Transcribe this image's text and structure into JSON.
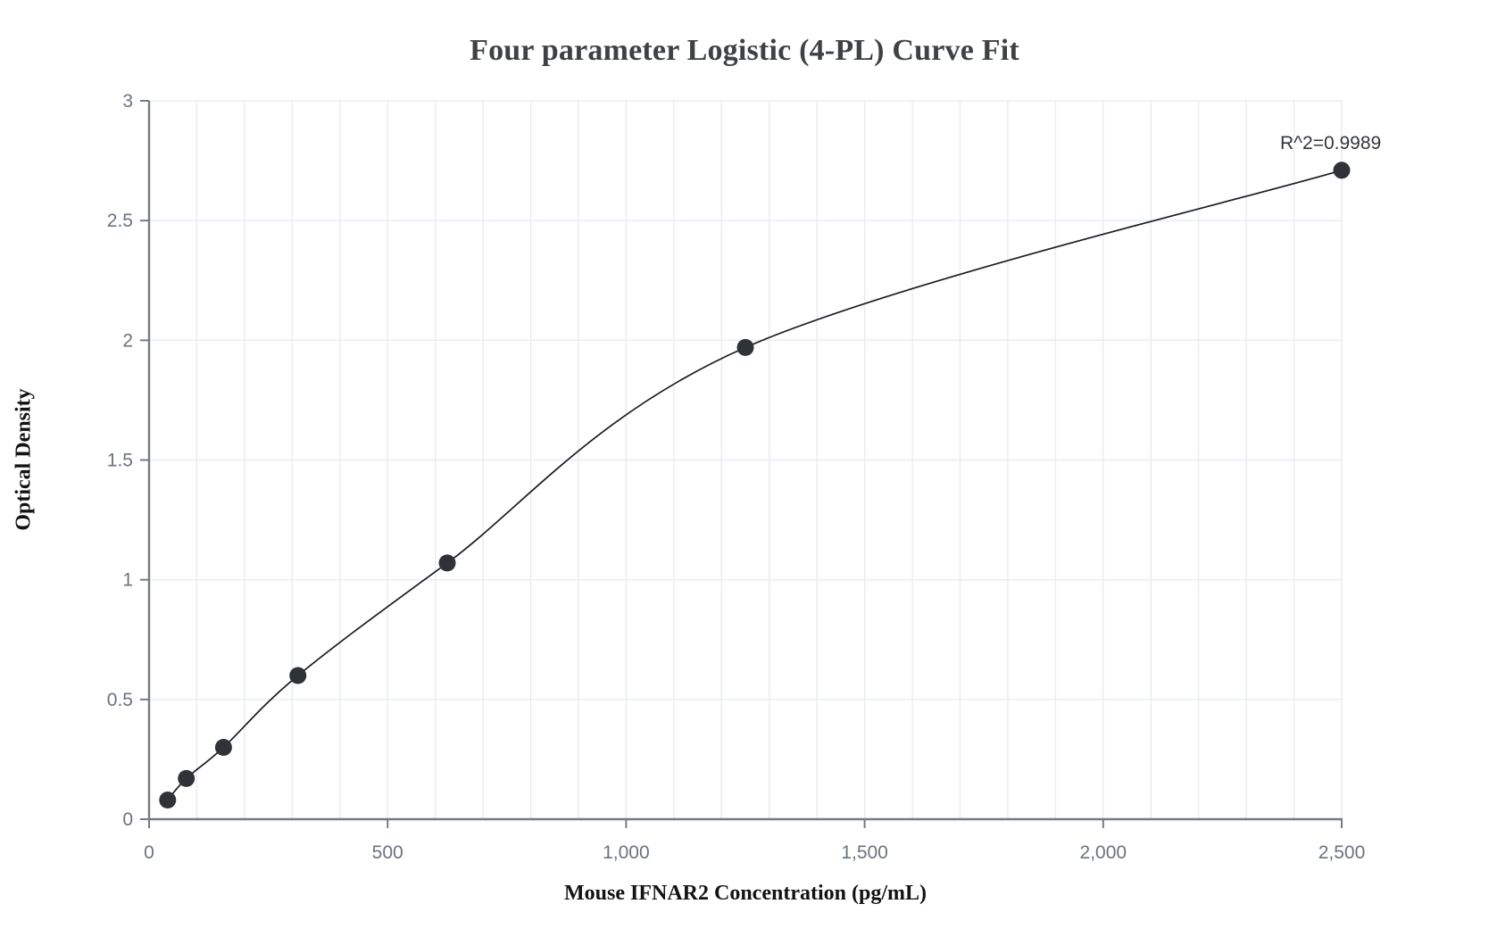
{
  "chart_data": {
    "type": "scatter",
    "title": "Four parameter Logistic (4-PL) Curve Fit",
    "xlabel": "Mouse IFNAR2 Concentration (pg/mL)",
    "ylabel": "Optical Density",
    "annotation": "R^2=0.9989",
    "series": [
      {
        "name": "4-PL standard curve",
        "x": [
          39,
          78,
          156,
          312,
          625,
          1250,
          2500
        ],
        "y": [
          0.08,
          0.17,
          0.3,
          0.6,
          1.07,
          1.97,
          2.71
        ],
        "marker": "filled-circle",
        "fit_line": "smooth 4-PL curve through all points"
      }
    ],
    "xlim": [
      0,
      2500
    ],
    "ylim": [
      0,
      3
    ],
    "x_ticks": {
      "values": [
        0,
        500,
        1000,
        1500,
        2000,
        2500
      ],
      "labels": [
        "0",
        "500",
        "1,000",
        "1,500",
        "2,000",
        "2,500"
      ]
    },
    "y_ticks": {
      "values": [
        0,
        0.5,
        1,
        1.5,
        2,
        2.5,
        3
      ],
      "labels": [
        "0",
        "0.5",
        "1",
        "1.5",
        "2",
        "2.5",
        "3"
      ]
    },
    "x_minor_gridline_step": 100,
    "grid": "on",
    "legend": "none",
    "colors": {
      "background": "#ffffff",
      "gridline": "#e8ebf4",
      "axis": "#767b83",
      "tick_label": "#6b7280",
      "point": "#2f3237",
      "curve": "#1a1c1f",
      "title": "#3f4245",
      "axis_label": "#131313",
      "annotation": "#33373d"
    }
  }
}
